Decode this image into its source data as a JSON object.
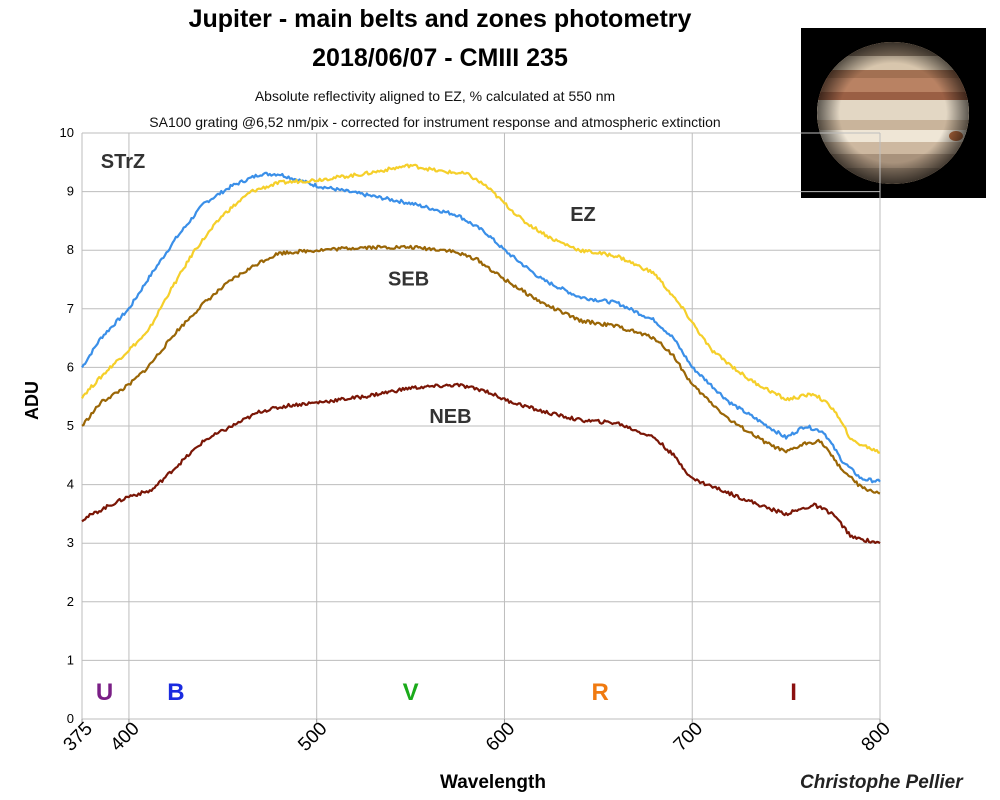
{
  "chart_data": {
    "type": "line",
    "title": "Jupiter - main belts and zones photometry",
    "subtitle": "2018/06/07 - CMIII 235",
    "notes": [
      "Absolute reflectivity aligned to EZ, % calculated at 550 nm",
      "SA100 grating @6,52 nm/pix - corrected for instrument response and atmospheric extinction"
    ],
    "xlabel": "Wavelength",
    "ylabel": "ADU",
    "credit": "Christophe Pellier",
    "xlim": [
      375,
      800
    ],
    "ylim": [
      0,
      10
    ],
    "yticks": [
      0,
      1,
      2,
      3,
      4,
      5,
      6,
      7,
      8,
      9,
      10
    ],
    "xticks": [
      375,
      400,
      500,
      600,
      700,
      800
    ],
    "grid": true,
    "bands": [
      {
        "label": "U",
        "x": 387,
        "color": "#7a1f86"
      },
      {
        "label": "B",
        "x": 425,
        "color": "#1a2be0"
      },
      {
        "label": "V",
        "x": 550,
        "color": "#1aaa1a"
      },
      {
        "label": "R",
        "x": 651,
        "color": "#f07a10"
      },
      {
        "label": "I",
        "x": 754,
        "color": "#8b1010"
      }
    ],
    "series": [
      {
        "name": "STrZ",
        "color": "#3a8fe8",
        "label_at": [
          385,
          9.4
        ],
        "points": [
          [
            375,
            6.0
          ],
          [
            385,
            6.5
          ],
          [
            400,
            7.0
          ],
          [
            410,
            7.5
          ],
          [
            425,
            8.2
          ],
          [
            440,
            8.8
          ],
          [
            455,
            9.1
          ],
          [
            470,
            9.3
          ],
          [
            480,
            9.3
          ],
          [
            490,
            9.2
          ],
          [
            500,
            9.1
          ],
          [
            525,
            8.95
          ],
          [
            550,
            8.8
          ],
          [
            575,
            8.6
          ],
          [
            590,
            8.3
          ],
          [
            600,
            8.0
          ],
          [
            620,
            7.5
          ],
          [
            640,
            7.2
          ],
          [
            660,
            7.1
          ],
          [
            680,
            6.8
          ],
          [
            690,
            6.5
          ],
          [
            700,
            6.0
          ],
          [
            720,
            5.4
          ],
          [
            740,
            5.0
          ],
          [
            750,
            4.8
          ],
          [
            760,
            5.0
          ],
          [
            770,
            4.9
          ],
          [
            780,
            4.4
          ],
          [
            790,
            4.1
          ],
          [
            800,
            4.05
          ]
        ]
      },
      {
        "name": "EZ",
        "color": "#f5cf2a",
        "label_at": [
          635,
          8.5
        ],
        "points": [
          [
            375,
            5.5
          ],
          [
            390,
            6.0
          ],
          [
            400,
            6.3
          ],
          [
            410,
            6.6
          ],
          [
            420,
            7.2
          ],
          [
            435,
            8.0
          ],
          [
            450,
            8.6
          ],
          [
            465,
            9.0
          ],
          [
            480,
            9.15
          ],
          [
            500,
            9.2
          ],
          [
            525,
            9.3
          ],
          [
            550,
            9.45
          ],
          [
            565,
            9.35
          ],
          [
            580,
            9.3
          ],
          [
            590,
            9.1
          ],
          [
            600,
            8.8
          ],
          [
            610,
            8.5
          ],
          [
            625,
            8.2
          ],
          [
            640,
            8.0
          ],
          [
            660,
            7.9
          ],
          [
            680,
            7.6
          ],
          [
            695,
            7.0
          ],
          [
            710,
            6.3
          ],
          [
            730,
            5.8
          ],
          [
            750,
            5.45
          ],
          [
            765,
            5.55
          ],
          [
            775,
            5.3
          ],
          [
            785,
            4.75
          ],
          [
            800,
            4.55
          ]
        ]
      },
      {
        "name": "SEB",
        "color": "#9a6606",
        "label_at": [
          538,
          7.4
        ],
        "points": [
          [
            375,
            5.0
          ],
          [
            385,
            5.4
          ],
          [
            400,
            5.7
          ],
          [
            410,
            6.0
          ],
          [
            425,
            6.6
          ],
          [
            440,
            7.1
          ],
          [
            455,
            7.5
          ],
          [
            470,
            7.8
          ],
          [
            480,
            7.95
          ],
          [
            500,
            8.0
          ],
          [
            525,
            8.05
          ],
          [
            550,
            8.05
          ],
          [
            570,
            8.0
          ],
          [
            585,
            7.85
          ],
          [
            600,
            7.5
          ],
          [
            620,
            7.1
          ],
          [
            640,
            6.8
          ],
          [
            660,
            6.7
          ],
          [
            680,
            6.5
          ],
          [
            690,
            6.2
          ],
          [
            700,
            5.7
          ],
          [
            720,
            5.1
          ],
          [
            740,
            4.7
          ],
          [
            750,
            4.55
          ],
          [
            760,
            4.7
          ],
          [
            768,
            4.75
          ],
          [
            780,
            4.25
          ],
          [
            790,
            3.95
          ],
          [
            800,
            3.85
          ]
        ]
      },
      {
        "name": "NEB",
        "color": "#7a1606",
        "label_at": [
          560,
          5.05
        ],
        "points": [
          [
            375,
            3.4
          ],
          [
            390,
            3.65
          ],
          [
            400,
            3.8
          ],
          [
            412,
            3.9
          ],
          [
            425,
            4.3
          ],
          [
            440,
            4.75
          ],
          [
            455,
            5.0
          ],
          [
            470,
            5.25
          ],
          [
            485,
            5.35
          ],
          [
            500,
            5.4
          ],
          [
            525,
            5.5
          ],
          [
            550,
            5.65
          ],
          [
            575,
            5.7
          ],
          [
            590,
            5.6
          ],
          [
            600,
            5.45
          ],
          [
            620,
            5.25
          ],
          [
            640,
            5.1
          ],
          [
            660,
            5.05
          ],
          [
            680,
            4.8
          ],
          [
            690,
            4.5
          ],
          [
            700,
            4.1
          ],
          [
            720,
            3.85
          ],
          [
            740,
            3.6
          ],
          [
            750,
            3.5
          ],
          [
            765,
            3.65
          ],
          [
            775,
            3.5
          ],
          [
            785,
            3.1
          ],
          [
            800,
            3.0
          ]
        ]
      }
    ]
  }
}
